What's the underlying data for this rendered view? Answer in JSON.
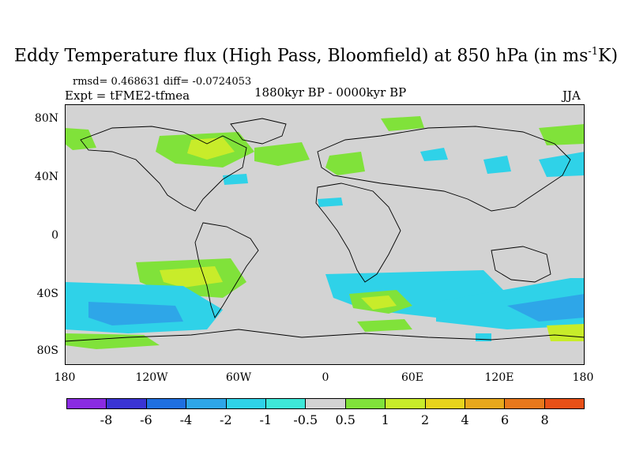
{
  "title": {
    "main": "Eddy Temperature flux (High Pass, Bloomfield) at 850 hPa (in ms",
    "sup": "-1",
    "end": "K)"
  },
  "stats": "rmsd= 0.468631 diff= -0.0724053",
  "expt": "Expt = tFME2-tfmea",
  "period": "1880kyr BP - 0000kyr BP",
  "season": "JJA",
  "lat_labels": [
    "80N",
    "40N",
    "0",
    "40S",
    "80S"
  ],
  "lon_labels": [
    "180",
    "120W",
    "60W",
    "0",
    "60E",
    "120E",
    "180"
  ],
  "colorbar": {
    "colors": [
      "#8a2be2",
      "#3a34d4",
      "#1f6fe0",
      "#2ea6e8",
      "#2fd2e8",
      "#3ee8d8",
      "#d3d3d3",
      "#80e23a",
      "#c8ec2a",
      "#e8d41c",
      "#e8a81c",
      "#e8781c",
      "#e85018"
    ],
    "labels": [
      "-8",
      "-6",
      "-4",
      "-2",
      "-1",
      "-0.5",
      "0.5",
      "1",
      "2",
      "4",
      "6",
      "8"
    ]
  }
}
